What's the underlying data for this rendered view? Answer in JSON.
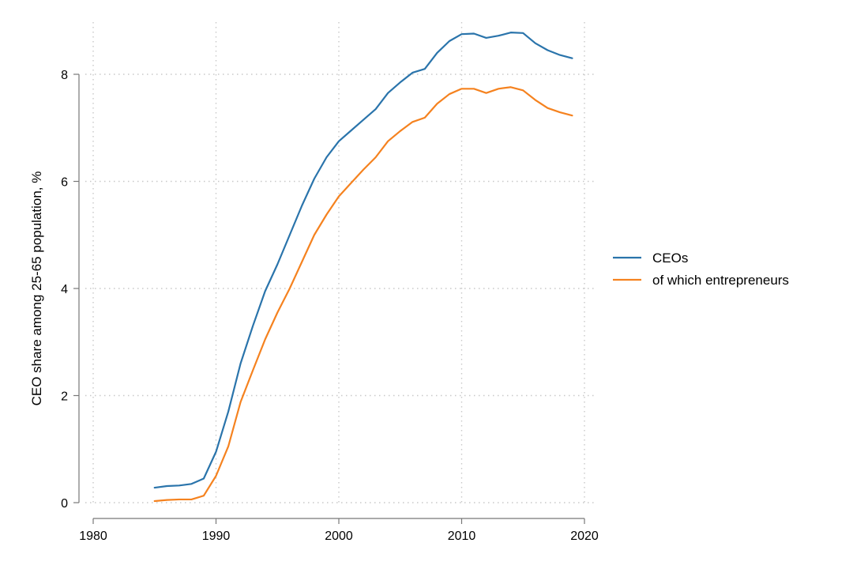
{
  "chart_data": {
    "type": "line",
    "title": "",
    "xlabel": "",
    "ylabel": "CEO share among 25-65 population, %",
    "xlim": [
      1980,
      2020
    ],
    "ylim": [
      0,
      9
    ],
    "x_ticks": [
      1980,
      1990,
      2000,
      2010,
      2020
    ],
    "y_ticks": [
      0,
      2,
      4,
      6,
      8
    ],
    "grid": true,
    "legend_position": "right",
    "x": [
      1985,
      1986,
      1987,
      1988,
      1989,
      1990,
      1991,
      1992,
      1993,
      1994,
      1995,
      1996,
      1997,
      1998,
      1999,
      2000,
      2001,
      2002,
      2003,
      2004,
      2005,
      2006,
      2007,
      2008,
      2009,
      2010,
      2011,
      2012,
      2013,
      2014,
      2015,
      2016,
      2017,
      2018,
      2019
    ],
    "series": [
      {
        "name": "CEOs",
        "color": "#2a74ab",
        "values": [
          0.28,
          0.31,
          0.32,
          0.35,
          0.45,
          0.95,
          1.7,
          2.6,
          3.3,
          3.95,
          4.45,
          5.0,
          5.55,
          6.05,
          6.45,
          6.75,
          6.95,
          7.15,
          7.35,
          7.65,
          7.85,
          8.03,
          8.1,
          8.4,
          8.62,
          8.75,
          8.76,
          8.68,
          8.72,
          8.78,
          8.77,
          8.58,
          8.45,
          8.36,
          8.3
        ]
      },
      {
        "name": "of which entrepreneurs",
        "color": "#f5821f",
        "values": [
          0.03,
          0.05,
          0.06,
          0.06,
          0.13,
          0.5,
          1.05,
          1.88,
          2.47,
          3.05,
          3.55,
          4.0,
          4.5,
          5.0,
          5.38,
          5.72,
          5.97,
          6.22,
          6.45,
          6.75,
          6.94,
          7.11,
          7.19,
          7.45,
          7.63,
          7.73,
          7.73,
          7.65,
          7.73,
          7.76,
          7.7,
          7.52,
          7.37,
          7.29,
          7.23
        ]
      }
    ]
  }
}
